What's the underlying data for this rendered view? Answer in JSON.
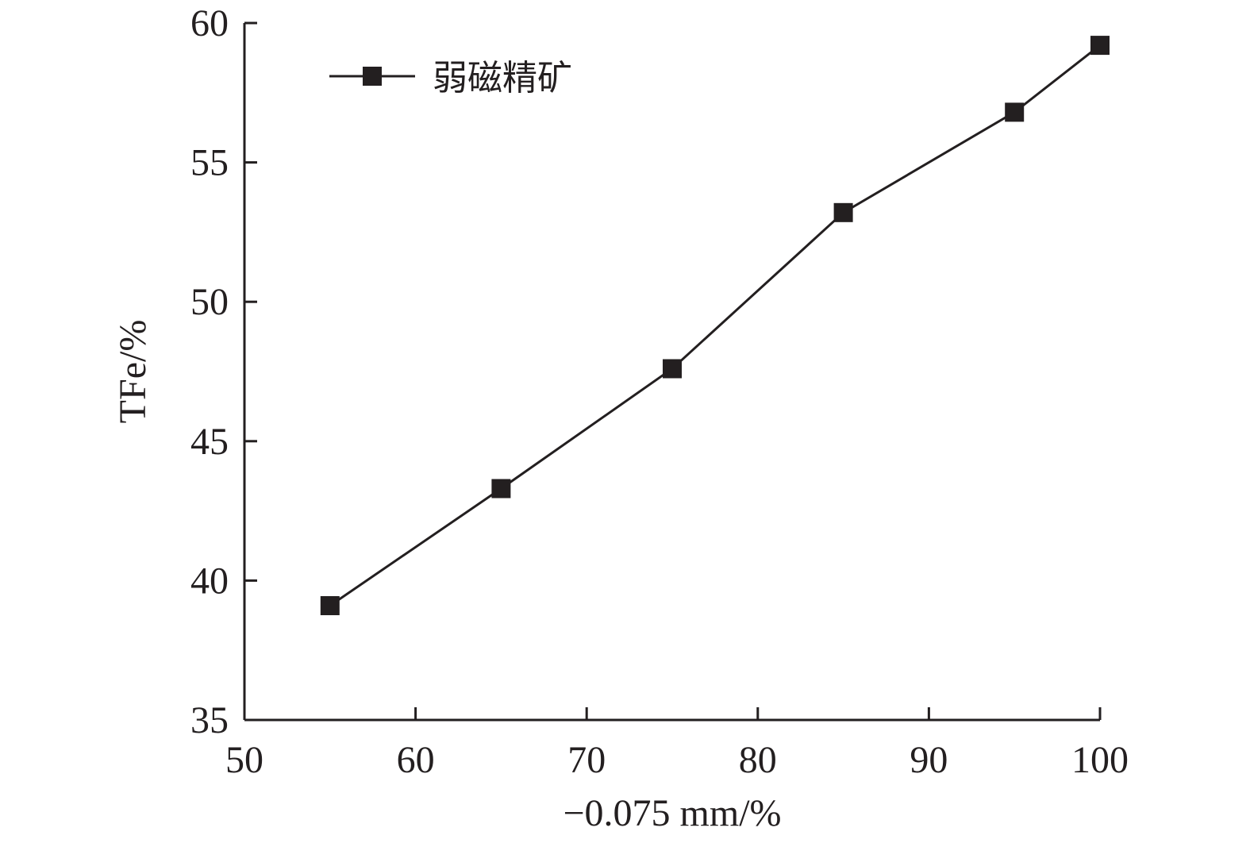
{
  "chart_data": {
    "type": "line",
    "title": "",
    "xlabel": "−0.075 mm/%",
    "ylabel": "TFe/%",
    "xlim": [
      50,
      100
    ],
    "ylim": [
      35,
      60
    ],
    "xticks": [
      50,
      60,
      70,
      80,
      90,
      100
    ],
    "yticks": [
      35,
      40,
      45,
      50,
      55,
      60
    ],
    "grid": false,
    "legend_position": "top-left",
    "series": [
      {
        "name": "弱磁精矿",
        "marker": "square",
        "color": "#231f20",
        "x": [
          55,
          65,
          75,
          85,
          95,
          100
        ],
        "y": [
          39.1,
          43.3,
          47.6,
          53.2,
          56.8,
          59.2
        ]
      }
    ]
  }
}
